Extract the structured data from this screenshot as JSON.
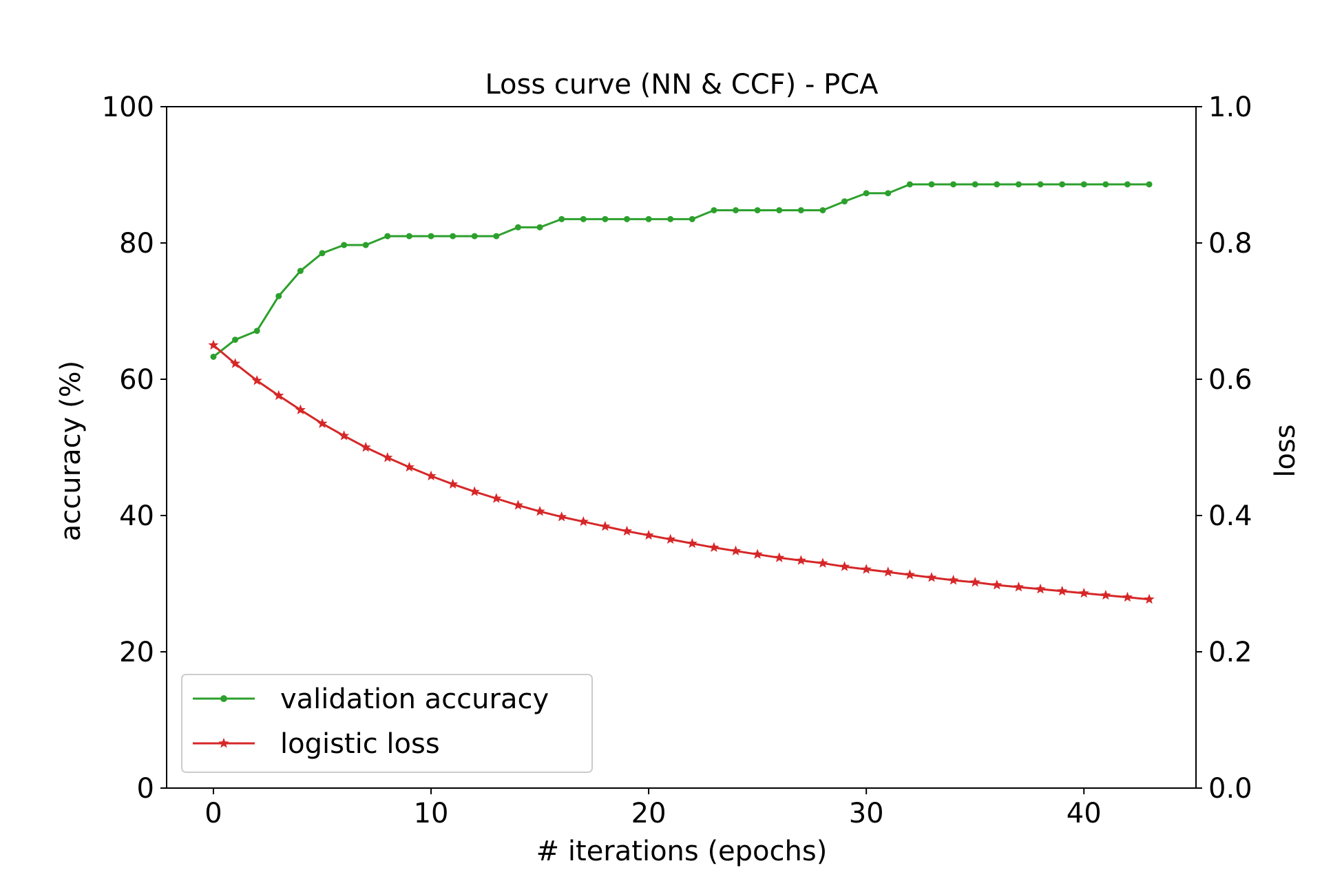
{
  "chart_data": {
    "type": "line",
    "title": "Loss curve (NN & CCF) - PCA",
    "xlabel": "# iterations (epochs)",
    "ylabel_left": "accuracy (%)",
    "ylabel_right": "loss",
    "xlim": [
      -2.15,
      45.15
    ],
    "ylim_left": [
      0,
      100
    ],
    "ylim_right": [
      0.0,
      1.0
    ],
    "x_ticks": [
      0,
      10,
      20,
      30,
      40
    ],
    "x_tick_labels": [
      "0",
      "10",
      "20",
      "30",
      "40"
    ],
    "y_left_ticks": [
      0,
      20,
      40,
      60,
      80,
      100
    ],
    "y_left_tick_labels": [
      "0",
      "20",
      "40",
      "60",
      "80",
      "100"
    ],
    "y_right_ticks": [
      0.0,
      0.2,
      0.4,
      0.6,
      0.8,
      1.0
    ],
    "y_right_tick_labels": [
      "0.0",
      "0.2",
      "0.4",
      "0.6",
      "0.8",
      "1.0"
    ],
    "grid": false,
    "legend_position": "lower-left",
    "x": [
      0,
      1,
      2,
      3,
      4,
      5,
      6,
      7,
      8,
      9,
      10,
      11,
      12,
      13,
      14,
      15,
      16,
      17,
      18,
      19,
      20,
      21,
      22,
      23,
      24,
      25,
      26,
      27,
      28,
      29,
      30,
      31,
      32,
      33,
      34,
      35,
      36,
      37,
      38,
      39,
      40,
      41,
      42,
      43
    ],
    "series": [
      {
        "name": "validation accuracy",
        "axis": "left",
        "color": "#2ca02c",
        "marker": "dot",
        "values": [
          63.3,
          65.8,
          67.1,
          72.2,
          75.9,
          78.5,
          79.7,
          79.7,
          81.0,
          81.0,
          81.0,
          81.0,
          81.0,
          81.0,
          82.3,
          82.3,
          83.5,
          83.5,
          83.5,
          83.5,
          83.5,
          83.5,
          83.5,
          84.8,
          84.8,
          84.8,
          84.8,
          84.8,
          84.8,
          86.1,
          87.3,
          87.3,
          88.6,
          88.6,
          88.6,
          88.6,
          88.6,
          88.6,
          88.6,
          88.6,
          88.6,
          88.6,
          88.6,
          88.6
        ]
      },
      {
        "name": "logistic loss",
        "axis": "right",
        "color": "#d62728",
        "marker": "star",
        "values": [
          0.65,
          0.623,
          0.598,
          0.576,
          0.555,
          0.535,
          0.517,
          0.5,
          0.485,
          0.471,
          0.458,
          0.446,
          0.435,
          0.425,
          0.415,
          0.406,
          0.398,
          0.391,
          0.384,
          0.377,
          0.371,
          0.365,
          0.359,
          0.353,
          0.348,
          0.343,
          0.338,
          0.334,
          0.33,
          0.325,
          0.321,
          0.317,
          0.313,
          0.309,
          0.305,
          0.302,
          0.298,
          0.295,
          0.292,
          0.289,
          0.286,
          0.283,
          0.28,
          0.277
        ]
      }
    ]
  }
}
